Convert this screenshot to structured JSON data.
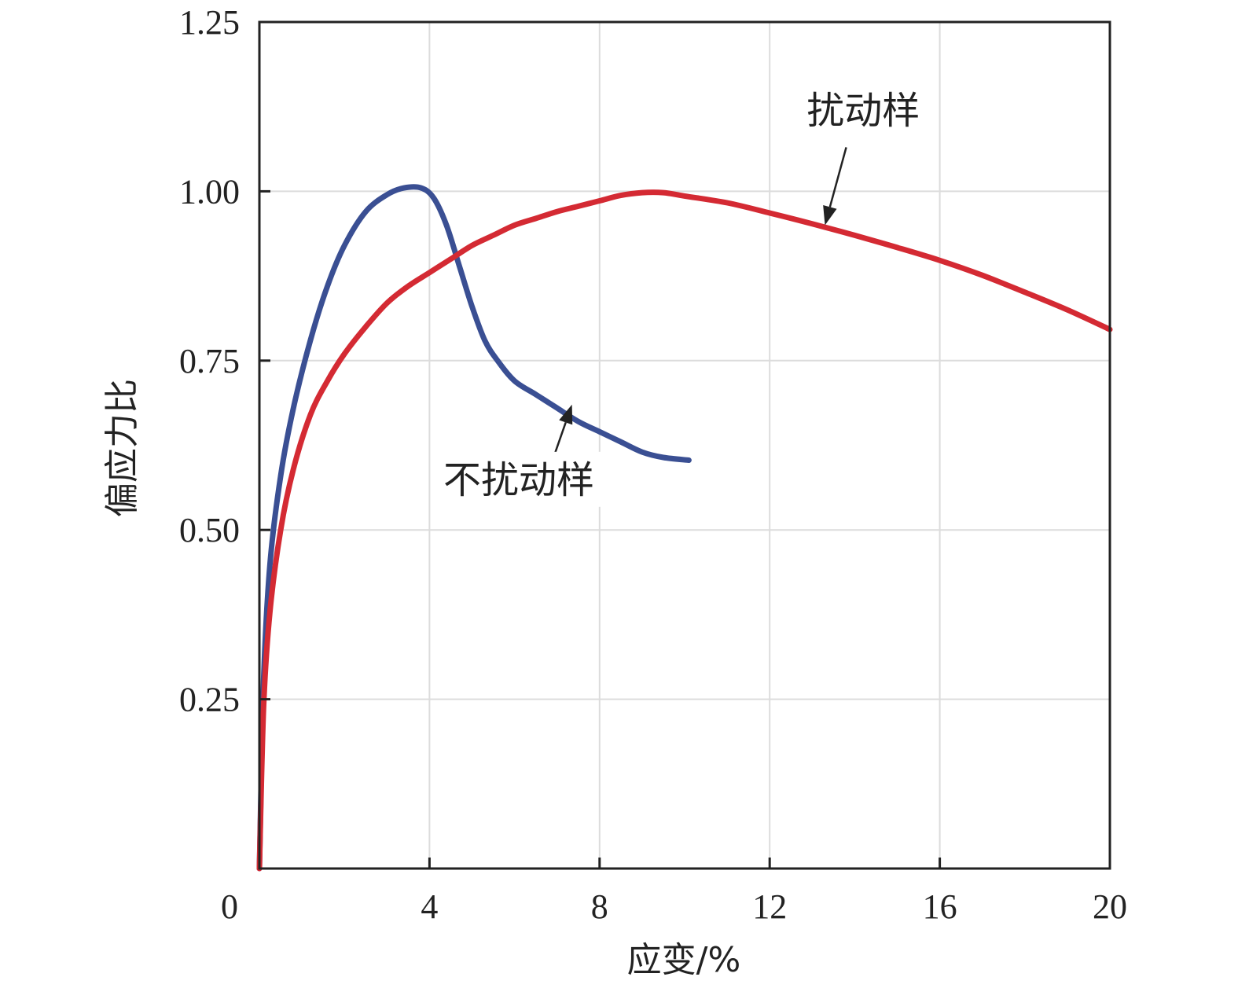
{
  "chart_data": {
    "type": "line",
    "xlabel": "应变/%",
    "ylabel": "偏应力比",
    "xlim": [
      0,
      20
    ],
    "ylim": [
      0,
      1.25
    ],
    "x_ticks": [
      "0",
      "4",
      "8",
      "12",
      "16",
      "20"
    ],
    "y_ticks": [
      "0.25",
      "0.50",
      "0.75",
      "1.00",
      "1.25"
    ],
    "grid": true,
    "series": [
      {
        "name": "不扰动样",
        "color": "#3a4f93",
        "x": [
          0,
          0.1,
          0.25,
          0.5,
          0.8,
          1.2,
          1.6,
          2.0,
          2.5,
          3.0,
          3.4,
          3.8,
          4.1,
          4.4,
          4.7,
          5.0,
          5.3,
          5.6,
          6.0,
          6.5,
          7.0,
          7.5,
          8.0,
          8.5,
          9.0,
          9.5,
          10.1
        ],
        "y": [
          0,
          0.28,
          0.45,
          0.58,
          0.68,
          0.78,
          0.86,
          0.92,
          0.97,
          0.995,
          1.005,
          1.005,
          0.99,
          0.95,
          0.89,
          0.83,
          0.78,
          0.75,
          0.72,
          0.7,
          0.68,
          0.66,
          0.645,
          0.63,
          0.615,
          0.607,
          0.603
        ]
      },
      {
        "name": "扰动样",
        "color": "#d42a33",
        "x": [
          0,
          0.1,
          0.25,
          0.5,
          0.8,
          1.2,
          1.6,
          2.0,
          2.5,
          3.0,
          3.5,
          4.0,
          4.5,
          5.0,
          5.5,
          6.0,
          6.5,
          7.0,
          7.5,
          8.0,
          8.5,
          9.0,
          9.5,
          10.0,
          11.0,
          12.0,
          13.0,
          14.0,
          15.0,
          16.0,
          17.0,
          18.0,
          19.0,
          20.0
        ],
        "y": [
          0,
          0.24,
          0.38,
          0.5,
          0.59,
          0.67,
          0.72,
          0.76,
          0.8,
          0.835,
          0.86,
          0.88,
          0.9,
          0.92,
          0.935,
          0.95,
          0.96,
          0.97,
          0.978,
          0.986,
          0.994,
          0.998,
          0.998,
          0.993,
          0.983,
          0.968,
          0.952,
          0.935,
          0.917,
          0.898,
          0.876,
          0.851,
          0.825,
          0.796
        ]
      }
    ],
    "annotations": [
      {
        "text": "扰动样",
        "target_series": "扰动样",
        "label_pos": [
          14.2,
          1.1
        ],
        "arrow_from": [
          13.8,
          1.065
        ],
        "arrow_to": [
          13.3,
          0.95
        ]
      },
      {
        "text": "不扰动样",
        "target_series": "不扰动样",
        "label_pos": [
          6.1,
          0.555
        ],
        "arrow_from": [
          6.85,
          0.595
        ],
        "arrow_to": [
          7.35,
          0.685
        ]
      }
    ]
  }
}
